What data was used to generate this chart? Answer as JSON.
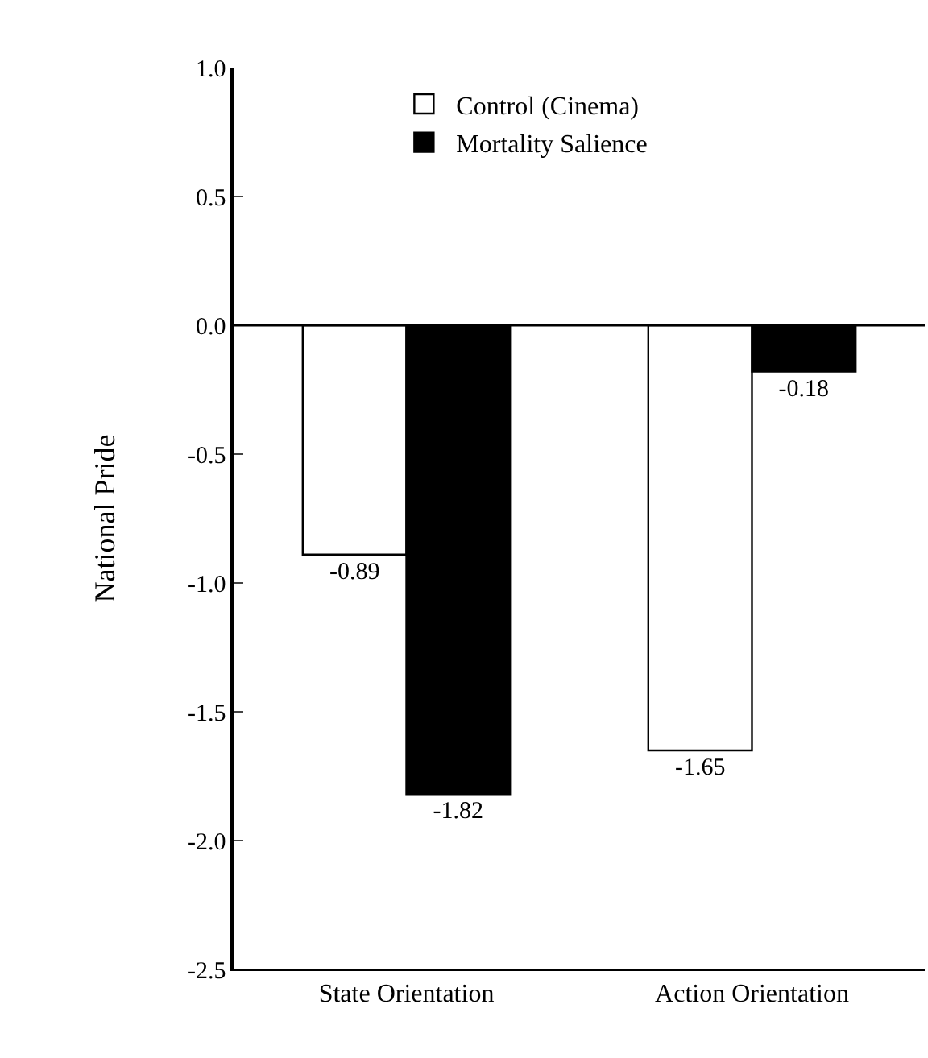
{
  "chart_data": {
    "type": "bar",
    "ylabel": "National Pride",
    "categories": [
      "State Orientation",
      "Action Orientation"
    ],
    "series": [
      {
        "name": "Control (Cinema)",
        "color": "#ffffff",
        "values": [
          -0.89,
          -1.65
        ]
      },
      {
        "name": "Mortality Salience",
        "color": "#000000",
        "values": [
          -1.82,
          -0.18
        ]
      }
    ],
    "ylim": [
      -2.5,
      1.0
    ],
    "yticks": [
      {
        "value": -2.5,
        "label": "-2.5"
      },
      {
        "value": -2.0,
        "label": "-2.0"
      },
      {
        "value": -1.5,
        "label": "-1.5"
      },
      {
        "value": -1.0,
        "label": "-1.0"
      },
      {
        "value": -0.5,
        "label": "-0.5"
      },
      {
        "value": 0,
        "label": "0.0"
      },
      {
        "value": 0.5,
        "label": "0.5"
      },
      {
        "value": 1.0,
        "label": "1.0"
      }
    ],
    "data_labels": true,
    "legend": "top",
    "ref_lines": [
      {
        "axis": "y",
        "value": 0,
        "color": "#000000"
      }
    ]
  }
}
